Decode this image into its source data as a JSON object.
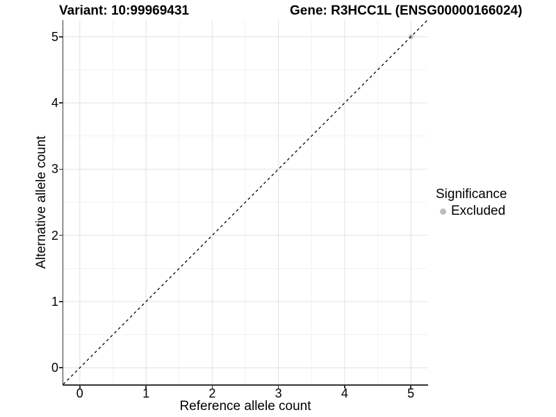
{
  "header": {
    "variant_title": "Variant: 10:99969431",
    "gene_title": "Gene: R3HCC1L (ENSG00000166024)"
  },
  "chart_data": {
    "type": "scatter",
    "xlabel": "Reference allele count",
    "ylabel": "Alternative allele count",
    "xlim": [
      -0.25,
      5.25
    ],
    "ylim": [
      -0.25,
      5.25
    ],
    "xticks": [
      0,
      1,
      2,
      3,
      4,
      5
    ],
    "yticks": [
      0,
      1,
      2,
      3,
      4,
      5
    ],
    "minor_gridlines_x": [
      0.5,
      1.5,
      2.5,
      3.5,
      4.5
    ],
    "minor_gridlines_y": [
      0.5,
      1.5,
      2.5,
      3.5,
      4.5
    ],
    "grid": "on",
    "identity_line": {
      "style": "dashed",
      "slope": 1,
      "intercept": 0,
      "color": "#000000"
    },
    "series": [
      {
        "name": "Excluded",
        "color": "#bdbdbd",
        "points": [
          {
            "x": 5,
            "y": 5
          }
        ]
      }
    ],
    "legend": {
      "position": "right",
      "title": "Significance",
      "entries": [
        {
          "label": "Excluded",
          "color": "#bdbdbd"
        }
      ]
    },
    "colors": {
      "grid_major": "#e3e3e3",
      "grid_minor": "#f1f1f1",
      "axis_line": "#333333",
      "text": "#000000",
      "background": "#ffffff"
    }
  }
}
